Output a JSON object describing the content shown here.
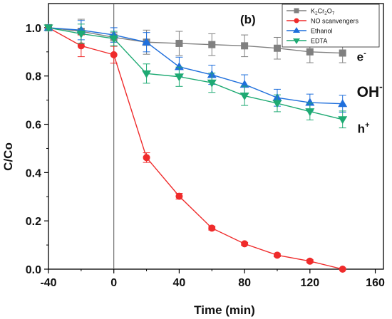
{
  "chart_data": {
    "type": "line",
    "panel_label": "(b)",
    "xlabel": "Time (min)",
    "ylabel": "C/Co",
    "xlim": [
      -40,
      165
    ],
    "ylim": [
      0,
      1.1
    ],
    "xticks": [
      -40,
      0,
      40,
      80,
      120,
      160
    ],
    "yticks": [
      0.0,
      0.2,
      0.4,
      0.6,
      0.8,
      1.0
    ],
    "xtick_labels": [
      "-40",
      "0",
      "40",
      "80",
      "120",
      "160"
    ],
    "ytick_labels": [
      "0.0",
      "0.2",
      "0.4",
      "0.6",
      "0.8",
      "1.0"
    ],
    "vertical_reference_line_x": 0,
    "legend_placement": "top-right",
    "series": [
      {
        "name": "K2Cr2O7",
        "legend_label": {
          "base": "K",
          "sub1": "2",
          "mid": "Cr",
          "sub2": "2",
          "mid2": "O",
          "sub3": "7"
        },
        "color": "#808080",
        "marker": "square",
        "x": [
          -40,
          -20,
          0,
          20,
          40,
          60,
          80,
          100,
          120,
          140
        ],
        "y": [
          1.0,
          0.985,
          0.96,
          0.94,
          0.935,
          0.93,
          0.925,
          0.915,
          0.9,
          0.895
        ],
        "err": [
          0.01,
          0.05,
          0.02,
          0.05,
          0.05,
          0.045,
          0.045,
          0.045,
          0.045,
          0.04
        ]
      },
      {
        "name": "NO scanvengers",
        "color": "#ef2b2b",
        "marker": "circle",
        "x": [
          -40,
          -20,
          0,
          20,
          40,
          60,
          80,
          100,
          120,
          140
        ],
        "y": [
          1.0,
          0.925,
          0.888,
          0.462,
          0.302,
          0.17,
          0.105,
          0.058,
          0.033,
          0.0
        ],
        "err": [
          0.01,
          0.045,
          0.035,
          0.02,
          0.012,
          0.008,
          0.006,
          0.006,
          0.006,
          0.005
        ]
      },
      {
        "name": "Ethanol",
        "color": "#1f6fdc",
        "marker": "triangle-up",
        "x": [
          -40,
          -20,
          0,
          20,
          40,
          60,
          80,
          100,
          120,
          140
        ],
        "y": [
          1.0,
          0.99,
          0.97,
          0.94,
          0.838,
          0.805,
          0.765,
          0.71,
          0.69,
          0.685
        ],
        "err": [
          0.01,
          0.04,
          0.03,
          0.04,
          0.04,
          0.04,
          0.04,
          0.035,
          0.035,
          0.035
        ]
      },
      {
        "name": "EDTA",
        "color": "#1eaa73",
        "marker": "triangle-down",
        "x": [
          -40,
          -20,
          0,
          20,
          40,
          60,
          80,
          100,
          120,
          140
        ],
        "y": [
          1.0,
          0.975,
          0.955,
          0.81,
          0.797,
          0.772,
          0.718,
          0.687,
          0.653,
          0.62
        ],
        "err": [
          0.01,
          0.04,
          0.03,
          0.04,
          0.04,
          0.04,
          0.04,
          0.035,
          0.035,
          0.035
        ]
      }
    ],
    "annotations": [
      {
        "id": "e",
        "base": "e",
        "sup": "-",
        "x": 140,
        "y": 0.895
      },
      {
        "id": "oh",
        "base": "OH",
        "sup": "-",
        "x": 140,
        "y": 0.69
      },
      {
        "id": "h",
        "base": "h",
        "sup": "+",
        "x": 140,
        "y": 0.6
      }
    ]
  }
}
